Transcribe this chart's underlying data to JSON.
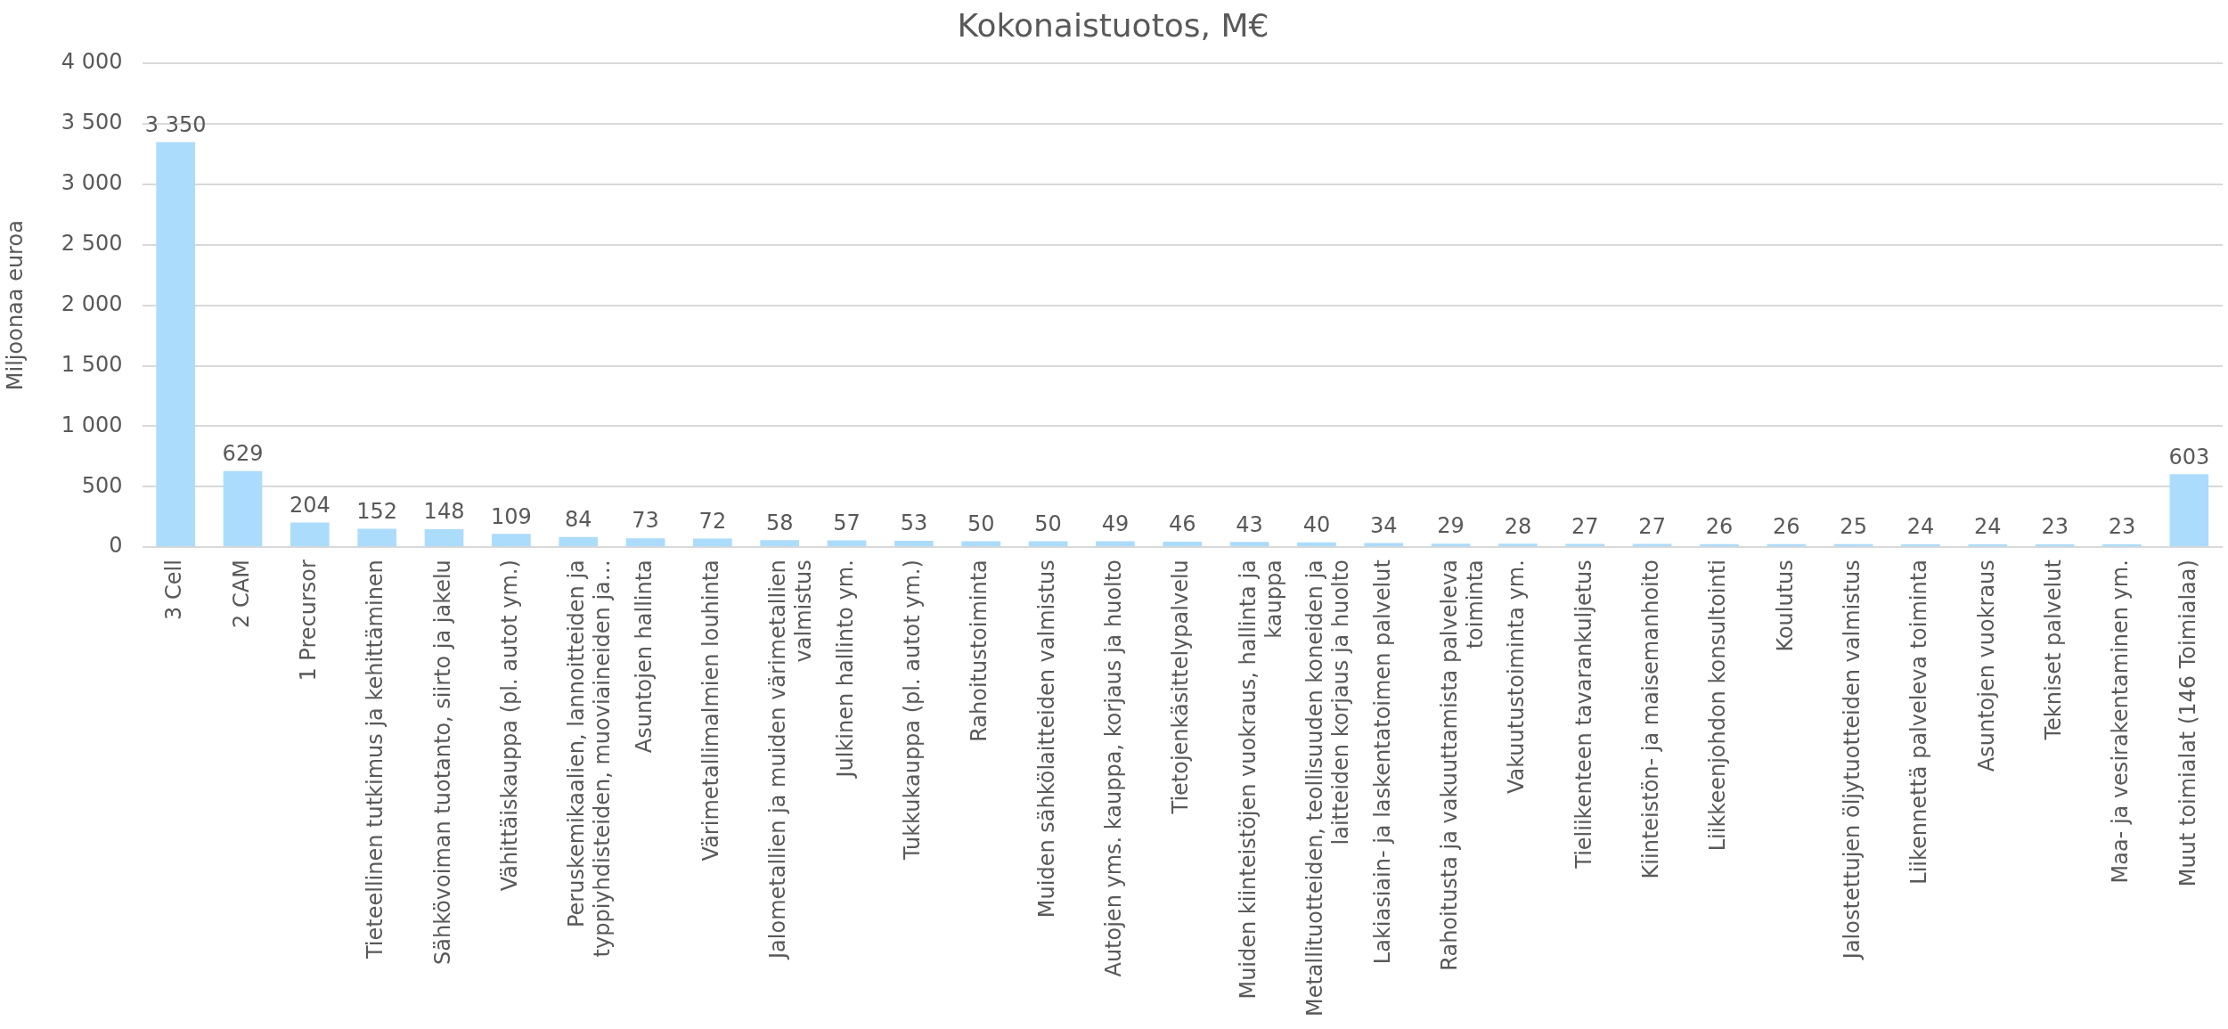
{
  "chart_data": {
    "type": "bar",
    "title": "Kokonaistuotos, M€",
    "ylabel": "Miljoonaa euroa",
    "categories": [
      "3 Cell",
      "2 CAM",
      "1 Precursor",
      "Tieteellinen tutkimus ja kehittäminen",
      "Sähkövoiman tuotanto, siirto ja jakelu",
      "Vähittäiskauppa (pl. autot ym.)",
      "Peruskemikaalien, lannoitteiden ja typpiyhdisteiden, muoviaineiden ja…",
      "Asuntojen hallinta",
      "Värimetallimalmien louhinta",
      "Jalometallien ja muiden värimetallien valmistus",
      "Julkinen hallinto ym.",
      "Tukkukauppa (pl. autot ym.)",
      "Rahoitustoiminta",
      "Muiden sähkölaitteiden valmistus",
      "Autojen yms. kauppa, korjaus ja huolto",
      "Tietojenkäsittelypalvelu",
      "Muiden kiinteistöjen vuokraus, hallinta ja kauppa",
      "Metallituotteiden, teollisuuden koneiden ja laitteiden korjaus ja huolto",
      "Lakiasiain- ja laskentatoimen palvelut",
      "Rahoitusta ja vakuuttamista palveleva toiminta",
      "Vakuutustoiminta ym.",
      "Tieliikenteen tavarankuljetus",
      "Kiinteistön- ja maisemanhoito",
      "Liikkeenjohdon konsultointi",
      "Koulutus",
      "Jalostettujen öljytuotteiden valmistus",
      "Liikennettä palveleva toiminta",
      "Asuntojen vuokraus",
      "Tekniset palvelut",
      "Maa- ja vesirakentaminen ym.",
      "Muut toimialat (146 Toimialaa)"
    ],
    "values": [
      3350,
      629,
      204,
      152,
      148,
      109,
      84,
      73,
      72,
      58,
      57,
      53,
      50,
      50,
      49,
      46,
      43,
      40,
      34,
      29,
      28,
      27,
      27,
      26,
      26,
      25,
      24,
      24,
      23,
      23,
      603
    ],
    "value_labels": [
      "3 350",
      "629",
      "204",
      "152",
      "148",
      "109",
      "84",
      "73",
      "72",
      "58",
      "57",
      "53",
      "50",
      "50",
      "49",
      "46",
      "43",
      "40",
      "34",
      "29",
      "28",
      "27",
      "27",
      "26",
      "26",
      "25",
      "24",
      "24",
      "23",
      "23",
      "603"
    ],
    "color": "#acdcfc",
    "ylim": [
      0,
      4000
    ],
    "yticks": [
      0,
      500,
      {
        "value": 1000,
        "label": "1 000"
      },
      {
        "value": 1500,
        "label": "1 500"
      },
      {
        "value": 2000,
        "label": "2 000"
      },
      {
        "value": 2500,
        "label": "2 500"
      },
      {
        "value": 3000,
        "label": "3 000"
      },
      {
        "value": 3500,
        "label": "3 500"
      },
      {
        "value": 4000,
        "label": "4 000"
      }
    ],
    "grid": "y"
  }
}
